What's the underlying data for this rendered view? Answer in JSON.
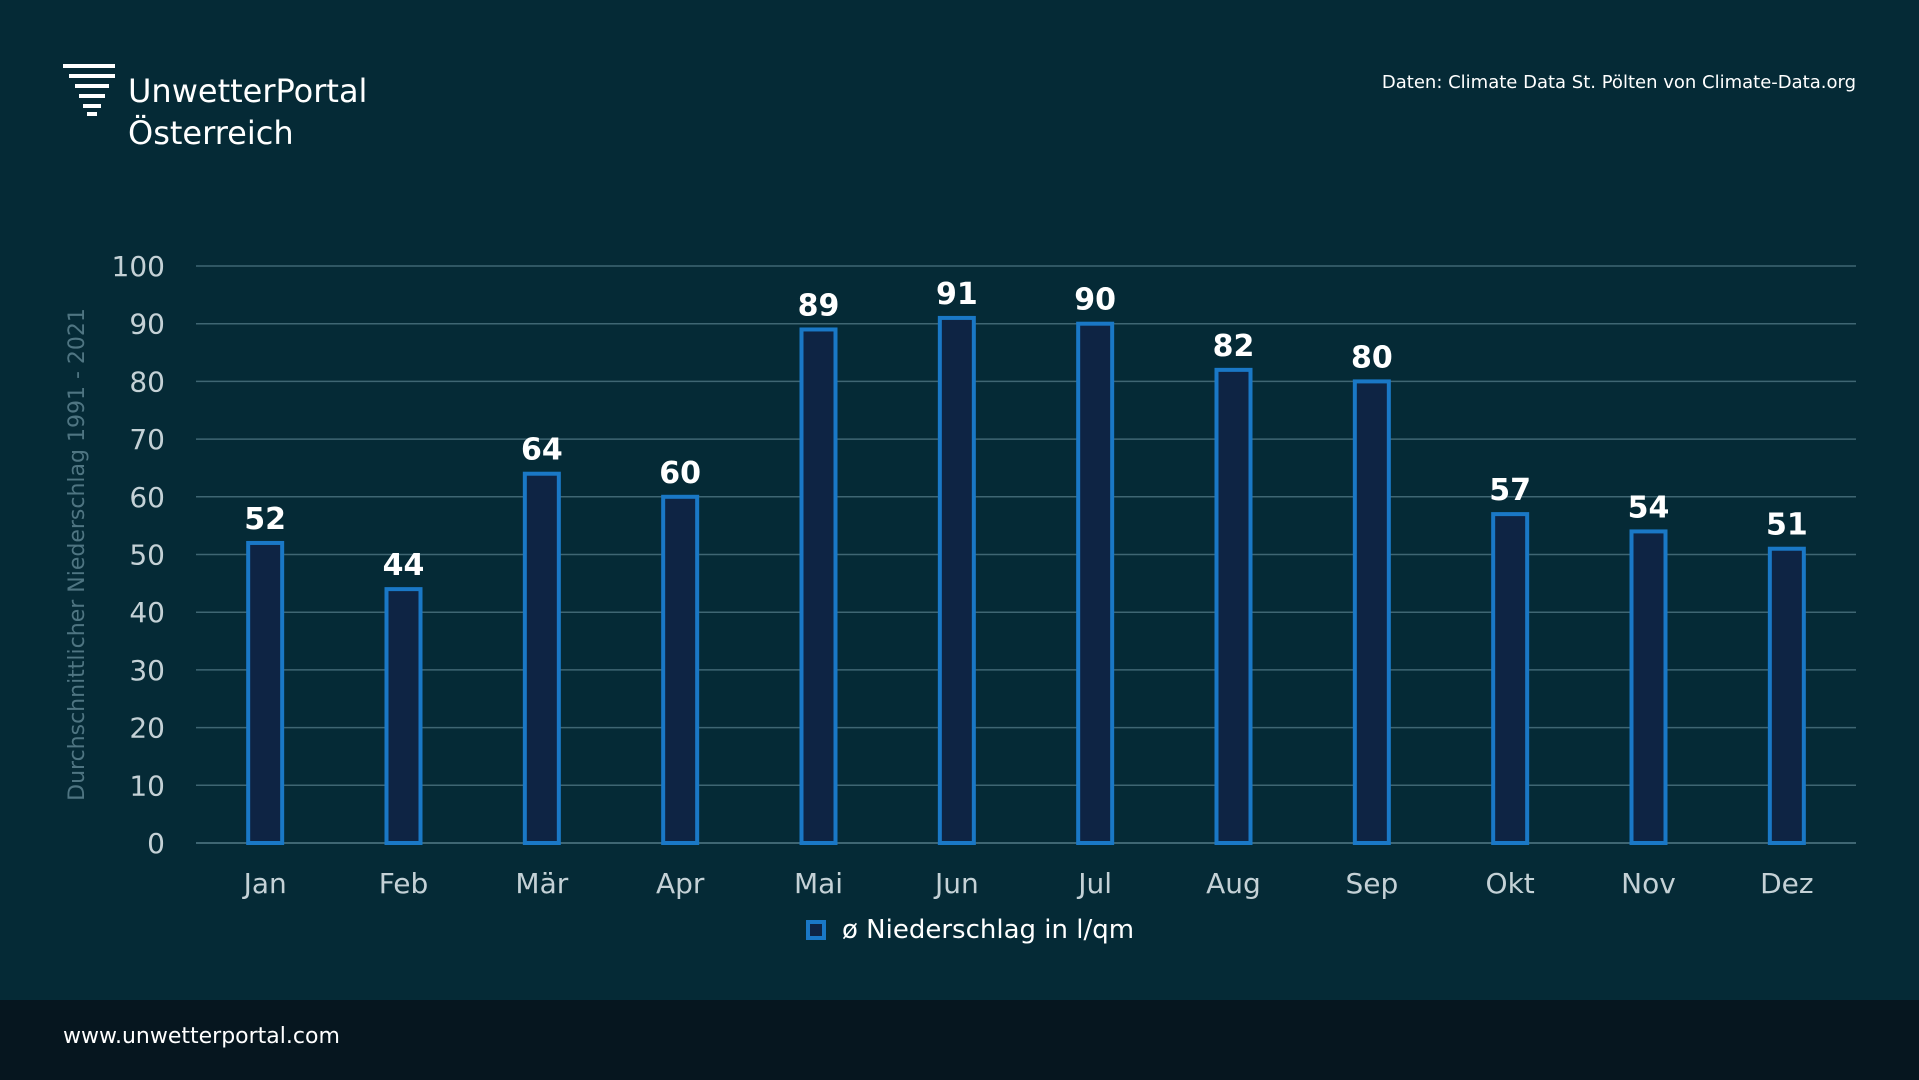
{
  "brand": {
    "line1": "UnwetterPortal",
    "line2": "Österreich",
    "icon": "storm-logo-icon"
  },
  "source_note": "Daten: Climate Data St. Pölten von Climate-Data.org",
  "footer": {
    "url": "www.unwetterportal.com"
  },
  "colors": {
    "background": "#052a36",
    "footer_bg": "#06161f",
    "bar_fill": "#0e2444",
    "bar_stroke": "#1a78c6",
    "grid": "#3f6673",
    "axis_text": "#c4d1d6",
    "ylabel_text": "#4f7582"
  },
  "chart_data": {
    "type": "bar",
    "title": "",
    "xlabel": "",
    "ylabel": "Durchschnittlicher Niederschlag 1991 - 2021",
    "categories": [
      "Jan",
      "Feb",
      "Mär",
      "Apr",
      "Mai",
      "Jun",
      "Jul",
      "Aug",
      "Sep",
      "Okt",
      "Nov",
      "Dez"
    ],
    "series": [
      {
        "name": "ø Niederschlag in l/qm",
        "values": [
          52,
          44,
          64,
          60,
          89,
          91,
          90,
          82,
          80,
          57,
          54,
          51
        ]
      }
    ],
    "ylim": [
      0,
      100
    ],
    "yticks": [
      0,
      10,
      20,
      30,
      40,
      50,
      60,
      70,
      80,
      90,
      100
    ],
    "grid": true,
    "data_labels": true,
    "legend_position": "bottom-center"
  }
}
